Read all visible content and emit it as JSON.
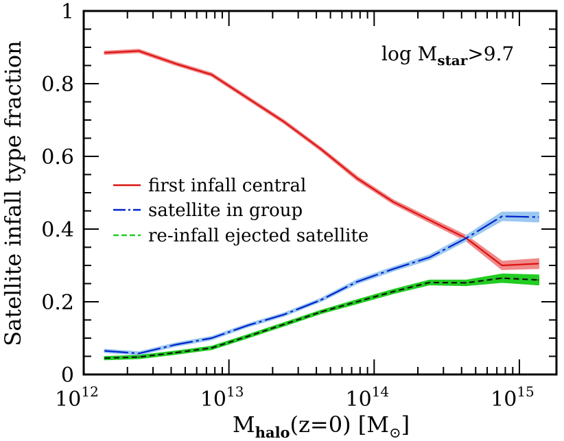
{
  "chart_data": {
    "type": "line",
    "xscale": "log",
    "xlim": [
      1000000000000.0,
      1800000000000000.0
    ],
    "ylim": [
      0,
      1
    ],
    "x_ticks": [
      {
        "value": 1000000000000.0,
        "base": "10",
        "exp": "12"
      },
      {
        "value": 10000000000000.0,
        "base": "10",
        "exp": "13"
      },
      {
        "value": 100000000000000.0,
        "base": "10",
        "exp": "14"
      },
      {
        "value": 1000000000000000.0,
        "base": "10",
        "exp": "15"
      }
    ],
    "y_ticks": [
      {
        "value": 0,
        "label": "0"
      },
      {
        "value": 0.2,
        "label": "0.2"
      },
      {
        "value": 0.4,
        "label": "0.4"
      },
      {
        "value": 0.6,
        "label": "0.6"
      },
      {
        "value": 0.8,
        "label": "0.8"
      },
      {
        "value": 1,
        "label": "1"
      }
    ],
    "xlabel": {
      "main": "M",
      "sub": "halo",
      "rest": "(z=0)  [M",
      "sub2": "⊙",
      "end": "]"
    },
    "ylabel": "Satellite infall type fraction",
    "annotation": {
      "main": "log M",
      "sub": "star",
      "rest": ">9.7"
    },
    "legend": {
      "placement": "center-left"
    },
    "series": [
      {
        "name": "first infall central",
        "color": "#dd1111",
        "band_color": "#f08a8a",
        "dash": "solid",
        "x": [
          1400000000000.0,
          2400000000000.0,
          4300000000000.0,
          7600000000000.0,
          13500000000000.0,
          24000000000000.0,
          43000000000000.0,
          76000000000000.0,
          135000000000000.0,
          240000000000000.0,
          430000000000000.0,
          760000000000000.0,
          1350000000000000.0
        ],
        "y": [
          0.885,
          0.89,
          0.855,
          0.825,
          0.76,
          0.695,
          0.62,
          0.54,
          0.475,
          0.425,
          0.375,
          0.3,
          0.305
        ],
        "err": [
          0.003,
          0.003,
          0.003,
          0.003,
          0.003,
          0.003,
          0.003,
          0.004,
          0.004,
          0.005,
          0.006,
          0.01,
          0.012
        ]
      },
      {
        "name": "satellite in group",
        "color": "#0022cc",
        "band_color": "#9cc8f0",
        "dash": "long-dash",
        "x": [
          1400000000000.0,
          2400000000000.0,
          4300000000000.0,
          7600000000000.0,
          13500000000000.0,
          24000000000000.0,
          43000000000000.0,
          76000000000000.0,
          135000000000000.0,
          240000000000000.0,
          430000000000000.0,
          760000000000000.0,
          1350000000000000.0
        ],
        "y": [
          0.065,
          0.058,
          0.082,
          0.1,
          0.135,
          0.165,
          0.205,
          0.255,
          0.29,
          0.322,
          0.375,
          0.435,
          0.433
        ],
        "err": [
          0.003,
          0.003,
          0.003,
          0.003,
          0.003,
          0.003,
          0.003,
          0.004,
          0.004,
          0.005,
          0.006,
          0.01,
          0.012
        ]
      },
      {
        "name": "re-infall ejected satellite",
        "color": "#111111",
        "band_color": "#22cc22",
        "dash": "short-dash",
        "x": [
          1400000000000.0,
          2400000000000.0,
          4300000000000.0,
          7600000000000.0,
          13500000000000.0,
          24000000000000.0,
          43000000000000.0,
          76000000000000.0,
          135000000000000.0,
          240000000000000.0,
          430000000000000.0,
          760000000000000.0,
          1350000000000000.0
        ],
        "y": [
          0.045,
          0.048,
          0.06,
          0.073,
          0.105,
          0.138,
          0.172,
          0.2,
          0.228,
          0.253,
          0.252,
          0.265,
          0.26
        ],
        "err": [
          0.003,
          0.003,
          0.003,
          0.003,
          0.003,
          0.003,
          0.003,
          0.004,
          0.004,
          0.005,
          0.006,
          0.01,
          0.012
        ]
      }
    ]
  }
}
